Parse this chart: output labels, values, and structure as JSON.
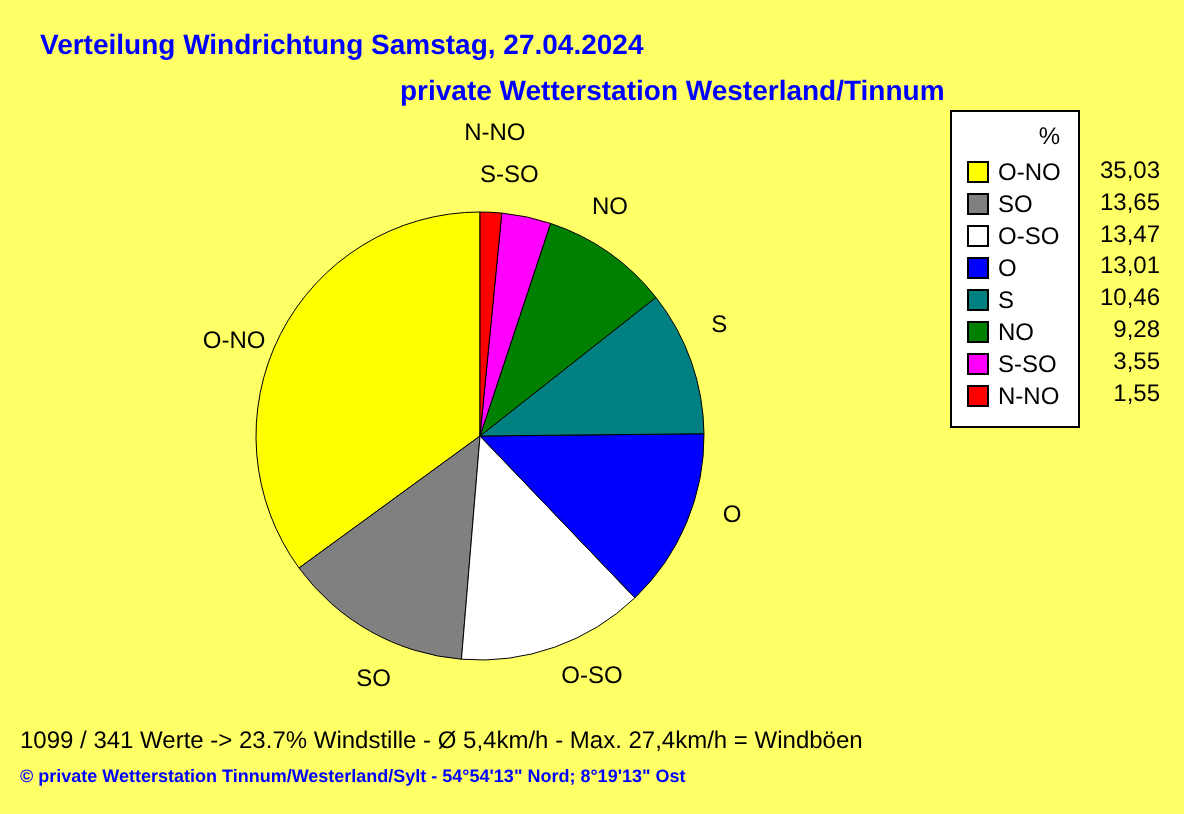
{
  "chart_data": {
    "type": "pie",
    "title": "Verteilung Windrichtung   Samstag, 27.04.2024",
    "subtitle": "private Wetterstation Westerland/Tinnum",
    "legend_title": "%",
    "legend": "top right",
    "categories": [
      "O-NO",
      "SO",
      "O-SO",
      "O",
      "S",
      "NO",
      "S-SO",
      "N-NO"
    ],
    "values": [
      35.03,
      13.65,
      13.47,
      13.01,
      10.46,
      9.28,
      3.55,
      1.55
    ],
    "value_labels": [
      "35,03",
      "13,65",
      "13,47",
      "13,01",
      "10,46",
      "9,28",
      "3,55",
      "1,55"
    ],
    "colors": [
      "#ffff00",
      "#808080",
      "#ffffff",
      "#0000ff",
      "#008080",
      "#008000",
      "#ff00ff",
      "#ff0000"
    ],
    "annotations": [
      "1099 / 341 Werte  -> 23.7% Windstille   -   Ø 5,4km/h  -  Max. 27,4km/h = Windböen",
      "© private Wetterstation Tinnum/Westerland/Sylt   -   54°54'13\" Nord; 8°19'13\" Ost"
    ]
  }
}
